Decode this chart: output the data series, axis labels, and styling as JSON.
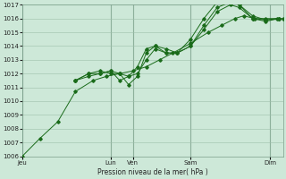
{
  "xlabel": "Pression niveau de la mer( hPa )",
  "ylim": [
    1006,
    1017
  ],
  "yticks": [
    1006,
    1007,
    1008,
    1009,
    1010,
    1011,
    1012,
    1013,
    1014,
    1015,
    1016,
    1017
  ],
  "bg_color": "#cde8d8",
  "grid_color": "#9dbfaa",
  "line_color": "#1a6b1a",
  "xtick_labels": [
    "Jeu",
    "Lun",
    "Ven",
    "Sam",
    "Dim"
  ],
  "xtick_positions": [
    0,
    40,
    50,
    76,
    112
  ],
  "xlim": [
    0,
    118
  ],
  "series": [
    {
      "x": [
        0,
        8,
        16,
        24,
        32,
        38,
        44,
        50,
        56,
        62,
        68,
        76,
        84,
        90,
        96,
        100,
        105,
        110,
        115,
        118
      ],
      "y": [
        1006.0,
        1007.3,
        1008.5,
        1010.7,
        1011.5,
        1011.8,
        1012.0,
        1012.2,
        1012.5,
        1013.0,
        1013.5,
        1014.2,
        1015.0,
        1015.5,
        1016.0,
        1016.2,
        1016.0,
        1016.0,
        1016.0,
        1016.0
      ]
    },
    {
      "x": [
        24,
        30,
        35,
        40,
        44,
        48,
        52,
        56,
        60,
        65,
        70,
        76,
        82,
        88,
        94,
        98,
        104,
        110,
        116
      ],
      "y": [
        1011.5,
        1011.8,
        1012.0,
        1012.2,
        1012.0,
        1011.2,
        1011.8,
        1013.5,
        1014.0,
        1013.8,
        1013.5,
        1014.0,
        1015.5,
        1016.8,
        1017.2,
        1017.0,
        1016.0,
        1015.9,
        1016.0
      ]
    },
    {
      "x": [
        24,
        30,
        35,
        40,
        44,
        48,
        52,
        56,
        60,
        65,
        70,
        76,
        82,
        88,
        94,
        98,
        104,
        110,
        116
      ],
      "y": [
        1011.5,
        1012.0,
        1012.0,
        1012.2,
        1011.5,
        1011.8,
        1012.5,
        1013.8,
        1014.0,
        1013.5,
        1013.5,
        1014.5,
        1016.0,
        1017.2,
        1017.3,
        1017.0,
        1016.2,
        1015.9,
        1016.0
      ]
    },
    {
      "x": [
        24,
        30,
        35,
        40,
        44,
        48,
        52,
        56,
        60,
        65,
        70,
        76,
        82,
        88,
        94,
        98,
        104,
        110,
        116
      ],
      "y": [
        1011.5,
        1012.0,
        1012.2,
        1012.0,
        1012.0,
        1011.8,
        1012.0,
        1013.0,
        1013.8,
        1013.5,
        1013.5,
        1014.0,
        1015.2,
        1016.5,
        1017.0,
        1016.8,
        1016.0,
        1015.8,
        1016.0
      ]
    }
  ]
}
